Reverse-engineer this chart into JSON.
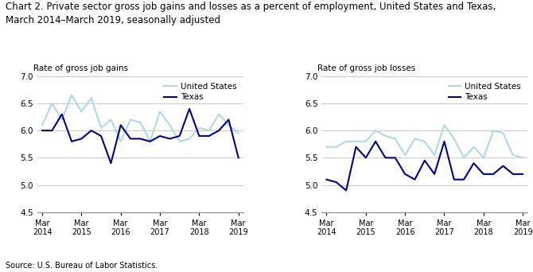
{
  "title_line1": "Chart 2. Private sector gross job gains and losses as a percent of employment, United States and Texas,",
  "title_line2": "March 2014–March 2019, seasonally adjusted",
  "title_fontsize": 8.5,
  "left_ylabel": "Rate of gross job gains",
  "right_ylabel": "Rate of gross job losses",
  "source": "Source: U.S. Bureau of Labor Statistics.",
  "ylim": [
    4.5,
    7.0
  ],
  "yticks": [
    4.5,
    5.0,
    5.5,
    6.0,
    6.5,
    7.0
  ],
  "xtick_labels": [
    "Mar\n2014",
    "Mar\n2015",
    "Mar\n2016",
    "Mar\n2017",
    "Mar\n2018",
    "Mar\n2019"
  ],
  "color_us": "#ADD8E6",
  "color_tx": "#00008B",
  "linewidth": 1.5,
  "gains_us": [
    6.1,
    6.5,
    6.2,
    6.65,
    6.35,
    6.6,
    6.05,
    6.2,
    5.8,
    6.2,
    6.15,
    5.8,
    6.35,
    6.1,
    5.8,
    5.85,
    6.05,
    6.0,
    6.3,
    6.1,
    5.95
  ],
  "gains_tx": [
    6.0,
    6.0,
    6.3,
    5.8,
    5.85,
    6.0,
    5.9,
    5.4,
    6.1,
    5.85,
    5.85,
    5.8,
    5.9,
    5.85,
    5.9,
    6.4,
    5.9,
    5.9,
    6.0,
    6.2,
    5.5
  ],
  "losses_us": [
    5.7,
    5.7,
    5.8,
    5.8,
    5.8,
    6.0,
    5.9,
    5.85,
    5.55,
    5.85,
    5.8,
    5.55,
    6.1,
    5.85,
    5.5,
    5.7,
    5.5,
    6.0,
    5.95,
    5.55,
    5.5
  ],
  "losses_tx": [
    5.1,
    5.05,
    4.9,
    5.7,
    5.5,
    5.8,
    5.5,
    5.5,
    5.2,
    5.1,
    5.45,
    5.2,
    5.8,
    5.1,
    5.1,
    5.4,
    5.2,
    5.2,
    5.35,
    5.2,
    5.2
  ],
  "n_points": 21,
  "xtick_positions": [
    0,
    4,
    8,
    12,
    16,
    20
  ]
}
